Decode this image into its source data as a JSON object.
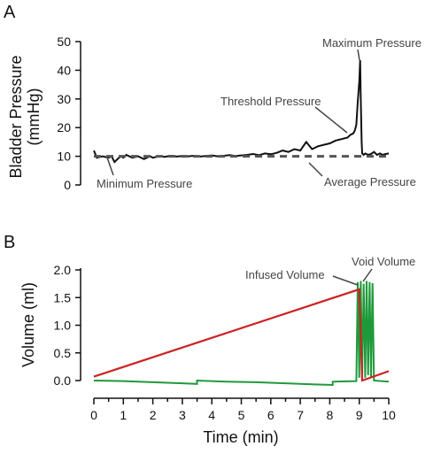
{
  "panels": {
    "a_letter": "A",
    "b_letter": "B"
  },
  "colors": {
    "pressure": "#111111",
    "average": "#555555",
    "infused": "#cc2222",
    "void": "#1f9a3a"
  },
  "chart_data": [
    {
      "type": "line",
      "panel": "A",
      "ylabel_lines": [
        "Bladder Pressure",
        "(mmHg)"
      ],
      "ylim": [
        0,
        50
      ],
      "yticks": [
        0,
        10,
        20,
        30,
        40,
        50
      ],
      "xlim": [
        0,
        10
      ],
      "series": [
        {
          "style": "solid",
          "color": "#111111",
          "x": [
            0.0,
            0.1,
            0.3,
            0.5,
            0.6,
            0.7,
            0.9,
            1.0,
            1.1,
            1.3,
            1.5,
            1.7,
            1.9,
            2.0,
            2.2,
            2.4,
            2.6,
            2.8,
            3.0,
            3.2,
            3.4,
            3.6,
            3.8,
            4.0,
            4.2,
            4.4,
            4.6,
            4.8,
            5.0,
            5.2,
            5.4,
            5.6,
            5.8,
            6.0,
            6.2,
            6.4,
            6.6,
            6.8,
            7.0,
            7.2,
            7.4,
            7.5,
            7.6,
            7.8,
            8.0,
            8.2,
            8.4,
            8.6,
            8.7,
            8.8,
            8.85,
            8.9,
            8.95,
            9.0,
            9.03,
            9.05,
            9.08,
            9.1,
            9.15,
            9.2,
            9.3,
            9.4,
            9.5,
            9.6,
            9.7,
            9.8,
            9.9,
            10.0
          ],
          "y": [
            12,
            9.5,
            10,
            9.5,
            10,
            8,
            10,
            9.5,
            10.5,
            9.5,
            10,
            9,
            10,
            9.5,
            10,
            9.8,
            10.2,
            9.9,
            10.1,
            10,
            10.2,
            9.9,
            10.1,
            10.3,
            10,
            10.2,
            10.4,
            10.1,
            10.3,
            10.5,
            10.8,
            10.4,
            11,
            10.7,
            11.2,
            12,
            11.5,
            12.5,
            12,
            15,
            12.5,
            13,
            13.5,
            14,
            14.5,
            15.5,
            16,
            16.5,
            17.5,
            18,
            19,
            21,
            29,
            36,
            43.5,
            30,
            15,
            11,
            10.5,
            11,
            10.5,
            10.8,
            11.5,
            10.5,
            11,
            10.5,
            10.8,
            11
          ]
        },
        {
          "style": "dashed",
          "color": "#555555",
          "x": [
            0.0,
            10.0
          ],
          "y": [
            10,
            10
          ]
        }
      ],
      "annotations": [
        "Maximum Pressure",
        "Threshold Pressure",
        "Minimum Pressure",
        "Average Pressure"
      ]
    },
    {
      "type": "line",
      "panel": "B",
      "ylabel": "Volume (ml)",
      "xlabel": "Time (min)",
      "ylim": [
        0,
        2.0
      ],
      "yticks": [
        "0.0",
        "0.5",
        "1.0",
        "1.5",
        "2.0"
      ],
      "xlim": [
        0,
        10
      ],
      "xticks": [
        "0",
        "1",
        "2",
        "3",
        "4",
        "5",
        "6",
        "7",
        "8",
        "9",
        "10"
      ],
      "series": [
        {
          "color": "#cc2222",
          "x": [
            0.0,
            9.0,
            9.1,
            10.0
          ],
          "y": [
            0.07,
            1.65,
            0.0,
            0.17
          ]
        },
        {
          "color": "#1f9a3a",
          "x": [
            0.0,
            1.0,
            2.0,
            3.0,
            3.5,
            3.5,
            4.5,
            5.5,
            6.5,
            7.5,
            8.1,
            8.1,
            8.9,
            8.95,
            9.0,
            9.05,
            9.1,
            9.15,
            9.2,
            9.25,
            9.3,
            9.35,
            9.4,
            9.45,
            9.5,
            10.0
          ],
          "y": [
            0.0,
            -0.01,
            -0.03,
            -0.05,
            -0.06,
            0.0,
            -0.02,
            -0.03,
            -0.05,
            -0.07,
            -0.08,
            -0.02,
            -0.01,
            1.78,
            0.05,
            1.8,
            0.1,
            1.75,
            0.05,
            1.8,
            0.1,
            1.78,
            0.05,
            1.76,
            0.0,
            -0.02
          ]
        }
      ],
      "annotations": [
        "Infused Volume",
        "Void Volume"
      ]
    }
  ]
}
